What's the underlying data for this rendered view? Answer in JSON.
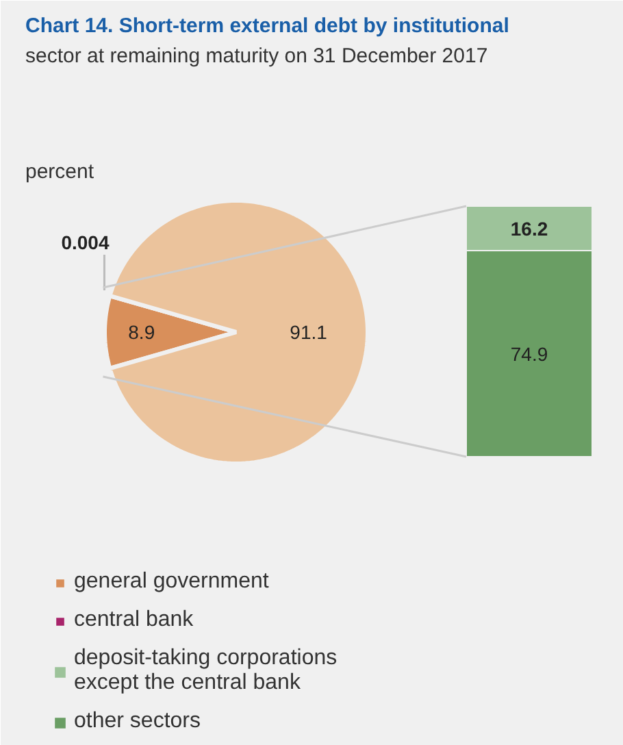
{
  "chart_data": [
    {
      "type": "pie",
      "title": "Chart 14. Short-term external debt by institutional sector at remaining maturity on 31 December 2017",
      "annotations": [
        "percent"
      ],
      "categories": [
        "general government",
        "central bank",
        null
      ],
      "values": [
        8.9,
        0.004,
        91.1
      ],
      "colors": [
        "#d98f5a",
        "#a8246b",
        "#ebc39c"
      ],
      "data_labels": true,
      "legend": "bottom"
    },
    {
      "type": "bar",
      "stacked": true,
      "categories": [
        null
      ],
      "series": [
        {
          "name": "other sectors",
          "color": "#6a9e64",
          "values": [
            74.9
          ]
        },
        {
          "name": "deposit-taking corporations except the central bank",
          "color": "#9dc39a",
          "values": [
            16.2
          ]
        }
      ],
      "data_labels": true,
      "legend": "bottom"
    }
  ]
}
